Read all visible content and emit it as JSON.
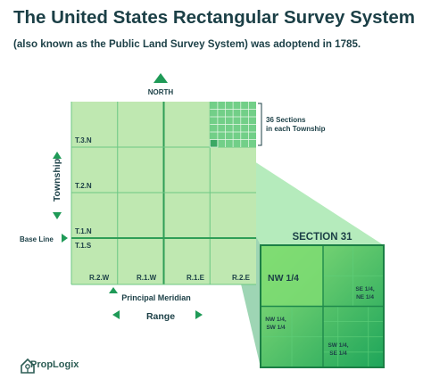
{
  "title": "The United States Rectangular Survey System",
  "subtitle": "(also known as the Public Land Survey System) was adoptend in 1785.",
  "north_label": "NORTH",
  "callout": {
    "line1": "36 Sections",
    "line2": "in each Township"
  },
  "township_axis_label": "Township",
  "township_labels": [
    "T.3.N",
    "T.2.N",
    "T.1.N",
    "T.1.S"
  ],
  "baseline_label": "Base Line",
  "range_labels": [
    "R.2.W",
    "R.1.W",
    "R.1.E",
    "R.2.E"
  ],
  "meridian_label": "Principal Meridian",
  "range_axis_label": "Range",
  "section": {
    "title": "SECTION 31",
    "quarters": {
      "nw": "NW 1/4",
      "se_ne": {
        "line1": "SE 1/4,",
        "line2": "NE 1/4"
      },
      "nw_sw": {
        "line1": "NW 1/4,",
        "line2": "SW 1/4"
      },
      "sw_se": {
        "line1": "SW 1/4,",
        "line2": "SE 1/4"
      }
    }
  },
  "logo_text": "PropLogix",
  "colors": {
    "text_dark": "#1b3f46",
    "grid_fill": "#bfe8b1",
    "line_green": "#2f9e57",
    "section_fill": "#2db862",
    "section_light": "#6fd36a"
  }
}
